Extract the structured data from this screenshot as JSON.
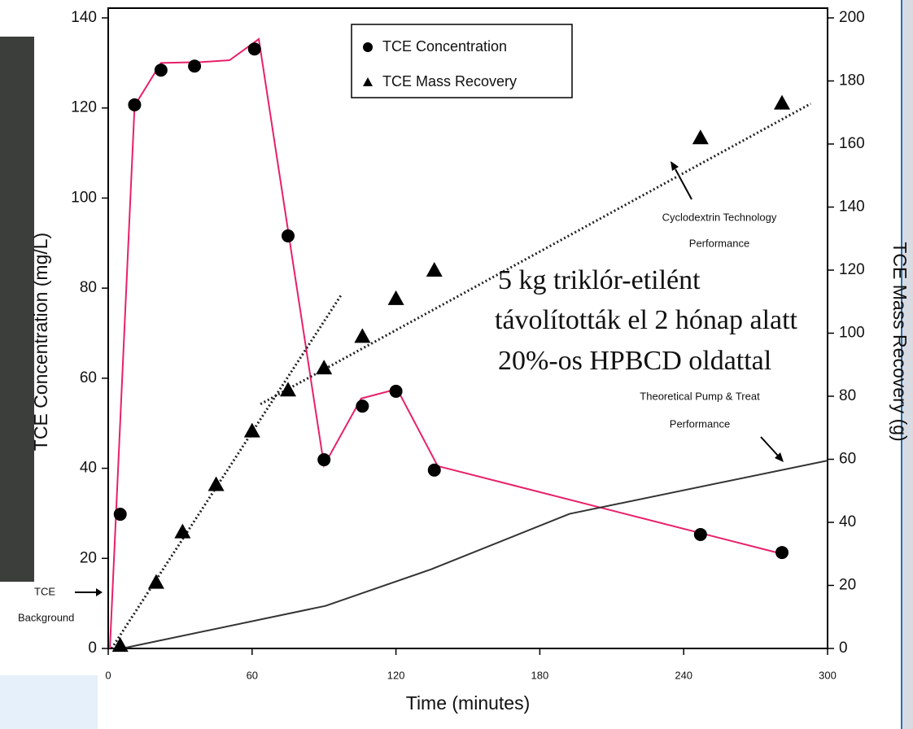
{
  "chart_data": {
    "type": "scatter",
    "xlabel": "Time (minutes)",
    "ylabel": "TCE Concentration (mg/L)",
    "y2label": "TCE Mass Recovery (g)",
    "xlim": [
      0,
      300
    ],
    "xticks": [
      0,
      60,
      120,
      180,
      240,
      300
    ],
    "ylim": [
      0,
      140
    ],
    "yticks": [
      0,
      20,
      40,
      60,
      80,
      100,
      120,
      140
    ],
    "y2lim": [
      0,
      200
    ],
    "y2ticks": [
      0,
      20,
      40,
      60,
      80,
      100,
      120,
      140,
      160,
      180,
      200
    ],
    "series": [
      {
        "name": "TCE Concentration",
        "marker": "circle",
        "color": "#000000",
        "axis": "y",
        "x": [
          5,
          11,
          22,
          36,
          61,
          75,
          90,
          106,
          120,
          136,
          247,
          281
        ],
        "values": [
          29.8,
          120.7,
          128.4,
          129.3,
          133.1,
          91.6,
          41.9,
          53.8,
          57.1,
          39.6,
          25.3,
          21.3
        ]
      },
      {
        "name": "TCE Mass Recovery",
        "marker": "triangle",
        "color": "#000000",
        "axis": "y2",
        "x": [
          5,
          20,
          31,
          45,
          60,
          75,
          90,
          106,
          120,
          136,
          247,
          281
        ],
        "values": [
          1,
          21,
          37,
          52,
          69,
          82,
          89,
          99,
          111,
          120,
          162,
          173
        ]
      }
    ],
    "lines": [
      {
        "color": "#e8206a",
        "style": "solid",
        "width": 2,
        "axis": "y",
        "x": [
          0.7,
          11,
          22,
          39,
          50.6,
          62.8,
          90,
          105.5,
          120.5,
          137.4,
          281
        ],
        "values": [
          0,
          120.5,
          130,
          130.2,
          130.6,
          135.3,
          40.6,
          55.5,
          57.6,
          40.5,
          21
        ]
      },
      {
        "color": "#222222",
        "style": "dotted",
        "width": 3,
        "axis": "y2",
        "x": [
          1.4,
          97.4
        ],
        "values": [
          0,
          112.4
        ]
      },
      {
        "color": "#222222",
        "style": "dotted",
        "width": 3,
        "axis": "y2",
        "x": [
          63.5,
          293
        ],
        "values": [
          77.5,
          172.8
        ]
      },
      {
        "color": "#333333",
        "style": "solid",
        "width": 2,
        "axis": "y2",
        "x": [
          5.8,
          90.6,
          134.7,
          192.4,
          300
        ],
        "values": [
          0,
          13.5,
          25.1,
          42.7,
          59.6
        ]
      }
    ],
    "annotations": [
      "TCE",
      "Background",
      "Cyclodextrin Technology",
      "Performance",
      "Theoretical Pump & Treat",
      "Performance"
    ],
    "overlay_text": [
      "5 kg triklór-etilént",
      "távolították el 2 hónap alatt",
      "20%-os HPBCD oldattal"
    ]
  }
}
